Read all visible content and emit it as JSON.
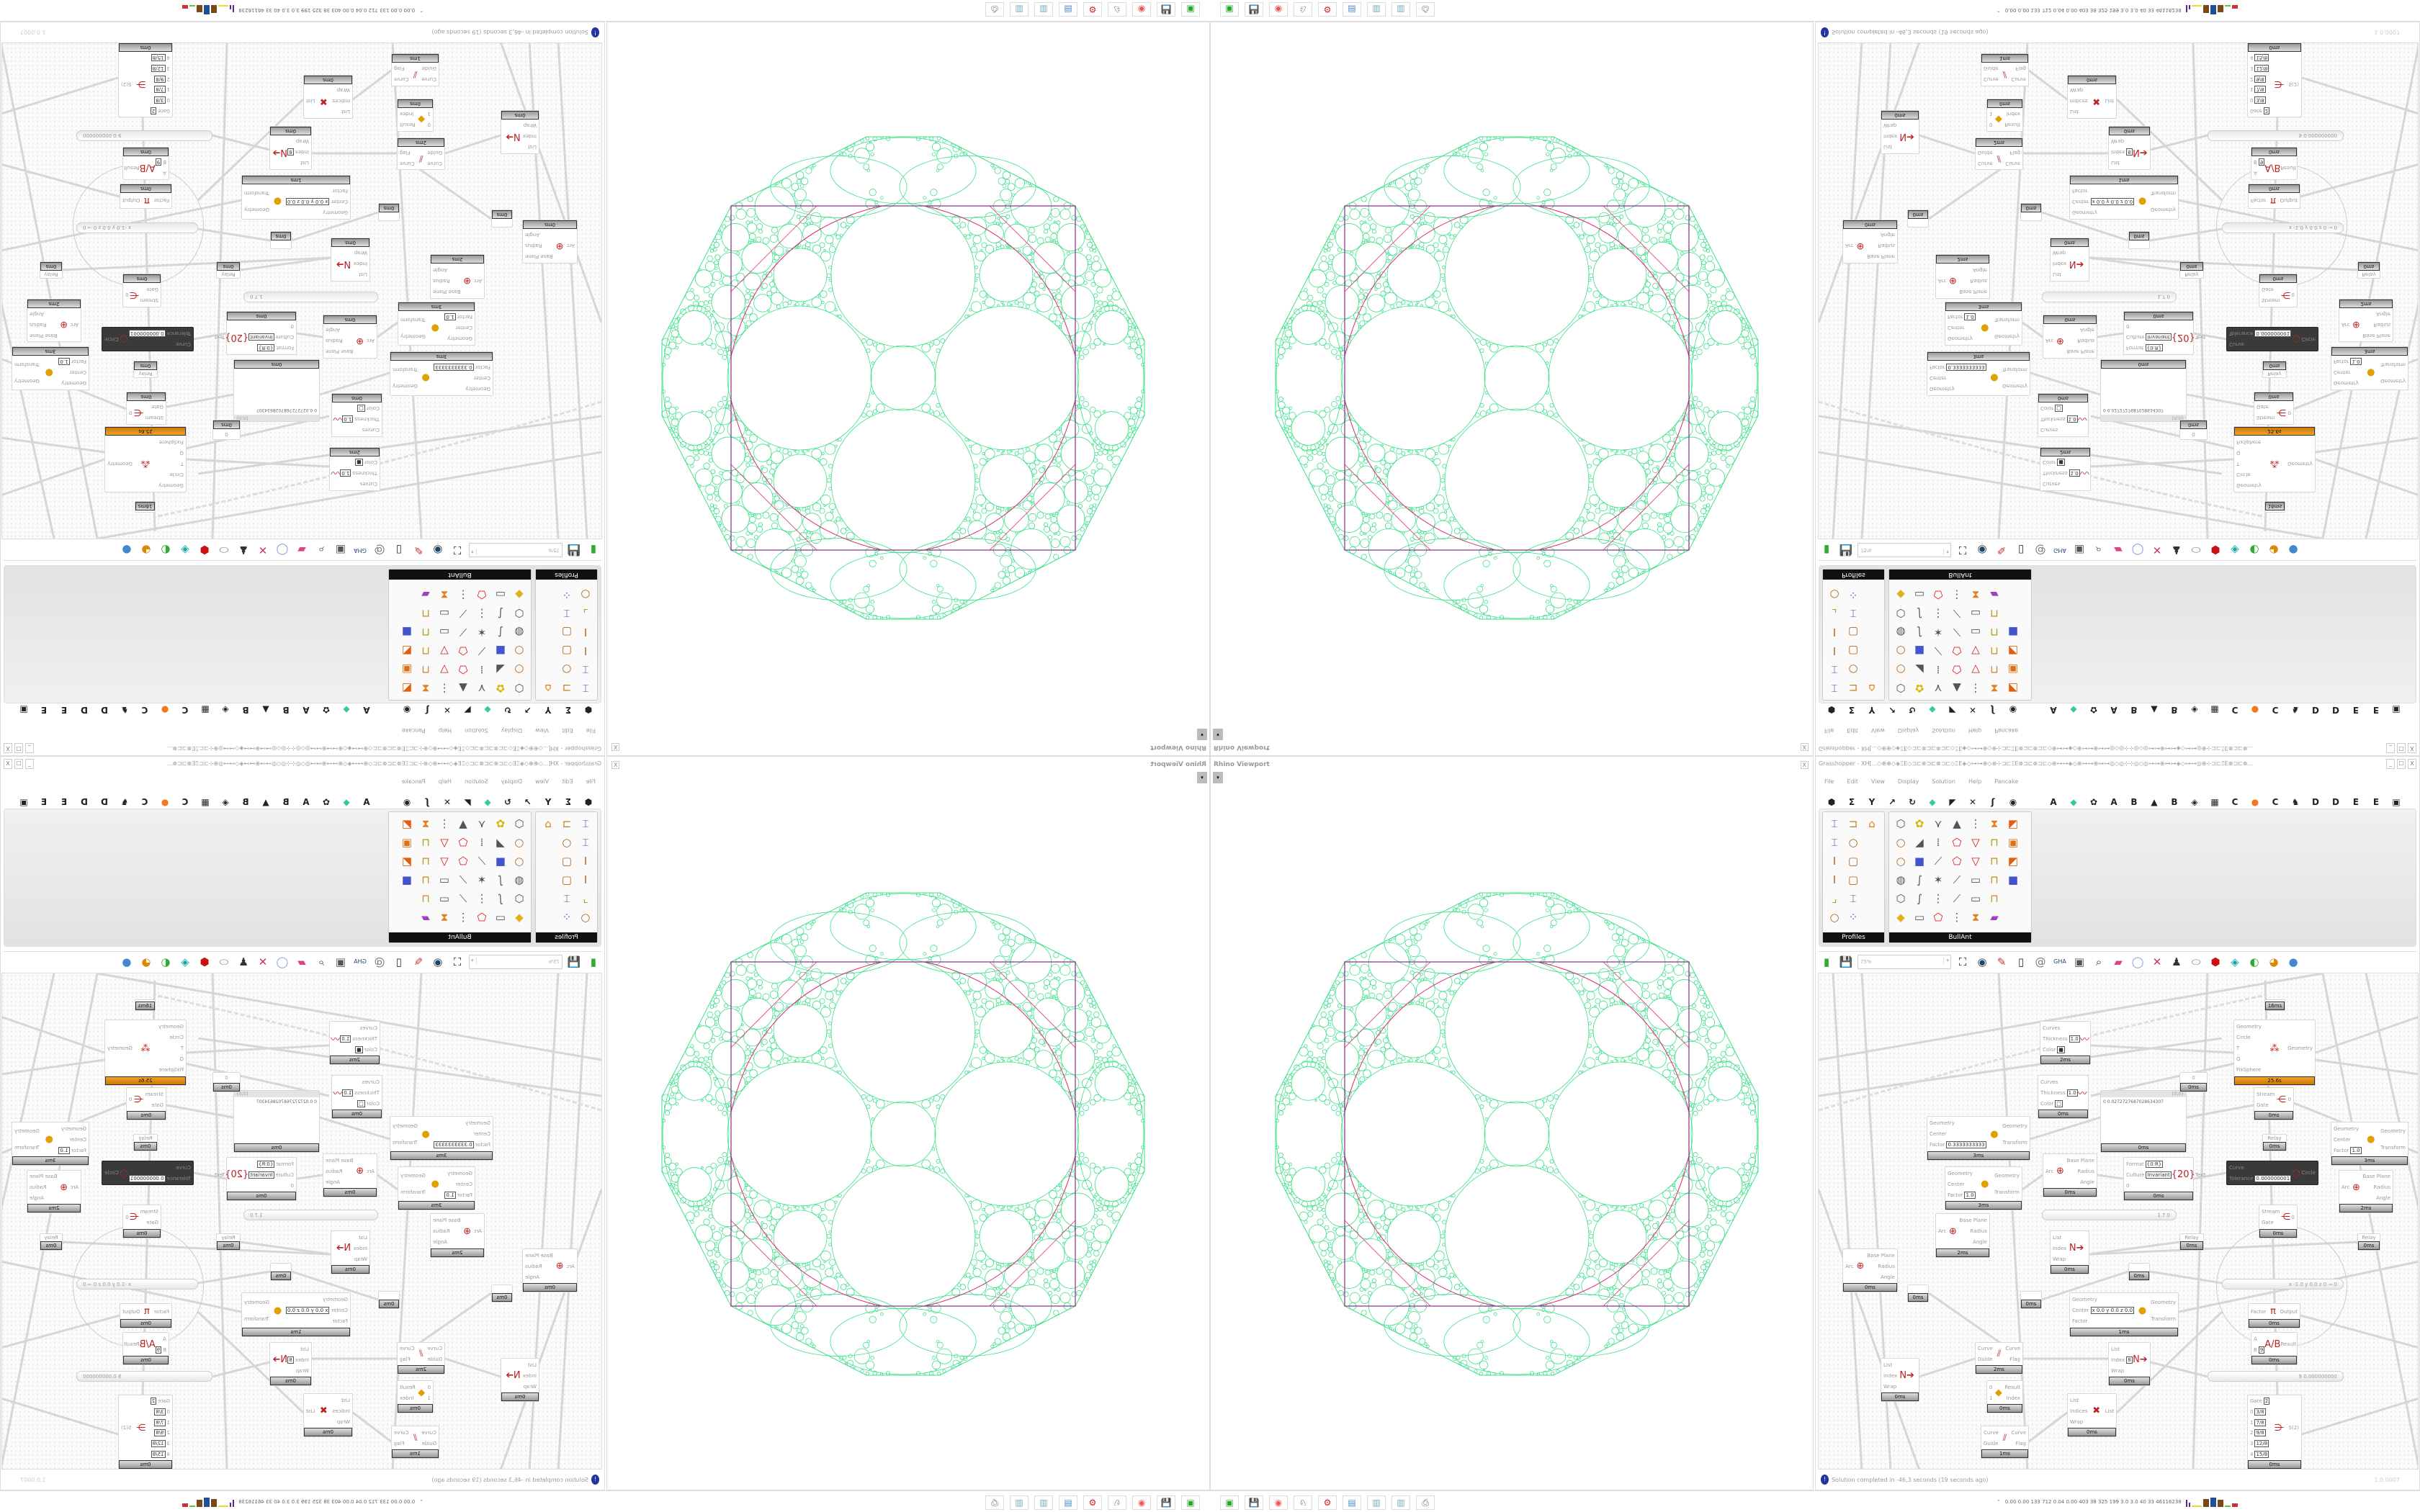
{
  "viewport": {
    "title": "Rhino Viewport",
    "close": "X",
    "dropdown": "▾",
    "colors": {
      "circles": "#3ee08a",
      "arcs": "#e0287a",
      "frame": "#8a2a8a"
    }
  },
  "grasshopper": {
    "title": "Grasshopper - XH[...◇⊕⊕◇◈ΞΕ◇⊐⊏⊗⊐⊏⊗⊐⊏◇ΞΕ◈◇⊶⊶⊕◇⊕⊹⊐⊏ΞΕ⊗⊐⊏⊗⊐⊏◇⊕⊶⊶◈◇⊕⊶⊶⊕⊶⊶◎◇◎⊹⊹◎◇◎⊶⊶⊕⊶⊶◈◇⊶⊶◎⊕⊹⊐⊏ΞΕ⊗⊐⊏⊗...",
    "window_buttons": [
      "_",
      "☐",
      "X"
    ],
    "menu": [
      "File",
      "Edit",
      "View",
      "Display",
      "Solution",
      "Help",
      "Pancake"
    ],
    "tabs": [
      "⬢",
      "Σ",
      "Y",
      "↗",
      "↻",
      "◆",
      "◤",
      "✕",
      "ʃ",
      "◉",
      "",
      "A",
      "◆",
      "✿",
      "A",
      "B",
      "▲",
      "B",
      "◈",
      "▦",
      "C",
      "●",
      "C",
      "♞",
      "D",
      "D",
      "E",
      "E",
      "▣"
    ],
    "accent": "#f07820",
    "panels": [
      {
        "label": "Profiles",
        "cols": 3,
        "icons": [
          "I-beam-profile",
          "C-channel",
          "roof",
          "I-beam-profile",
          "ring",
          "",
          "I-section",
          "rect-tube",
          "",
          "I-section",
          "rect-tube",
          "",
          "angle",
          "I-beam-profile",
          "",
          "ring",
          "points",
          ""
        ]
      },
      {
        "label": "BullAnt",
        "cols": 7,
        "icons": [
          "solid",
          "flower",
          "split",
          "cone",
          "divide",
          "warp",
          "chart",
          "ring",
          "plane",
          "grid",
          "polygon-red",
          "triangle",
          "lock",
          "box-orange",
          "ring",
          "cube",
          "polyline",
          "polygon-red",
          "triangle",
          "lock",
          "chart",
          "sphere",
          "curve",
          "star",
          "polyline",
          "frame",
          "lock",
          "cube",
          "solid",
          "curve",
          "divide",
          "polyline",
          "frame",
          "lock",
          "",
          "gem",
          "frame",
          "polygon-red",
          "divide",
          "warp",
          "rainbow",
          ""
        ]
      }
    ],
    "toolbar": {
      "zoom": "75%",
      "icons": [
        "new-file",
        "save",
        "zoom-extents",
        "eye",
        "sketch",
        "bake",
        "mail",
        "gha",
        "window",
        "search",
        "package",
        "bulb",
        "twist",
        "ink",
        "link",
        "red-gem",
        "teal",
        "green",
        "sphere",
        "blue-sphere"
      ]
    },
    "status": {
      "message": "Solution completed in -46,3 seconds (19 seconds ago)",
      "version": "1.0.0007",
      "icon": "!"
    }
  },
  "canvas": {
    "nodes": [
      {
        "inputs": [
          {
            "label": "Curves"
          },
          {
            "label": "Thickness",
            "value": "1.0"
          },
          {
            "label": "Color",
            "value": "■"
          }
        ],
        "outputs": [],
        "icon": "〰",
        "time": "2ms"
      },
      {
        "inputs": [
          {
            "label": "Curves"
          },
          {
            "label": "Thickness",
            "value": "1.0"
          },
          {
            "label": "Color",
            "value": "□"
          }
        ],
        "outputs": [],
        "icon": "〰",
        "time": "0ms"
      },
      {
        "kind": "panel",
        "header": "{0;0}",
        "text": "0  0.0272727687028634307",
        "time": "0ms"
      },
      {
        "kind": "param",
        "inputs": [
          {
            "label": "0"
          }
        ],
        "outputs": [],
        "time": "0ms"
      },
      {
        "inputs": [
          {
            "label": "Geometry"
          },
          {
            "label": "Circle"
          },
          {
            "label": "T"
          },
          {
            "label": "Q"
          },
          {
            "label": "FixSphere"
          }
        ],
        "outputs": [
          {
            "label": "Geometry"
          }
        ],
        "icon": "⁂",
        "time": "25.6s",
        "style": "orange"
      },
      {
        "inputs": [
          {
            "label": "Stream"
          },
          {
            "label": "Gate"
          }
        ],
        "outputs": [
          {
            "label": "0"
          }
        ],
        "icon": "⋲",
        "time": "0ms"
      },
      {
        "kind": "param",
        "inputs": [
          {
            "label": "Relay"
          }
        ],
        "outputs": [],
        "time": "0ms"
      },
      {
        "inputs": [
          {
            "label": "Geometry"
          },
          {
            "label": "Center"
          },
          {
            "label": "Factor",
            "value": "0.3333333333"
          }
        ],
        "outputs": [
          {
            "label": "Geometry"
          },
          {
            "label": "Transform"
          }
        ],
        "icon": "●",
        "time": "3ms"
      },
      {
        "inputs": [
          {
            "label": "Geometry"
          },
          {
            "label": "Center"
          },
          {
            "label": "Factor",
            "value": "1.0"
          }
        ],
        "outputs": [
          {
            "label": "Geometry"
          },
          {
            "label": "Transform"
          }
        ],
        "icon": "●",
        "time": "3ms"
      },
      {
        "inputs": [
          {
            "label": "Arc"
          }
        ],
        "outputs": [
          {
            "label": "Base Plane"
          },
          {
            "label": "Radius"
          },
          {
            "label": "Angle"
          }
        ],
        "icon": "⊕",
        "time": "0ms"
      },
      {
        "inputs": [
          {
            "label": "Format",
            "value": "{0:R}"
          },
          {
            "label": "Culture",
            "value": "Invariant"
          },
          {
            "label": "0"
          }
        ],
        "outputs": [
          {
            "label": "Text"
          }
        ],
        "icon": "{20}",
        "time": "0ms"
      },
      {
        "inputs": [
          {
            "label": "Curve"
          },
          {
            "label": "Tolerance",
            "value": "0.000000001"
          }
        ],
        "outputs": [
          {
            "label": "Circle"
          }
        ],
        "icon": "○",
        "time": "",
        "style": "dark"
      },
      {
        "inputs": [
          {
            "label": "Geometry"
          },
          {
            "label": "Center"
          },
          {
            "label": "Factor",
            "value": "1.0"
          }
        ],
        "outputs": [
          {
            "label": "Geometry"
          },
          {
            "label": "Transform"
          }
        ],
        "icon": "●",
        "time": "3ms"
      },
      {
        "inputs": [
          {
            "label": "Arc"
          }
        ],
        "outputs": [
          {
            "label": "Base Plane"
          },
          {
            "label": "Radius"
          },
          {
            "label": "Angle"
          }
        ],
        "icon": "⊕",
        "time": "2ms"
      },
      {
        "inputs": [
          {
            "label": "Stream"
          },
          {
            "label": "Gate"
          }
        ],
        "outputs": [
          {
            "label": "0"
          }
        ],
        "icon": "⋲",
        "time": "0ms"
      },
      {
        "kind": "param",
        "inputs": [
          {
            "label": ""
          }
        ],
        "outputs": [],
        "time": "16ms"
      },
      {
        "inputs": [
          {
            "label": "Arc"
          }
        ],
        "outputs": [
          {
            "label": "Base Plane"
          },
          {
            "label": "Radius"
          },
          {
            "label": "Angle"
          }
        ],
        "icon": "⊕",
        "time": "2ms"
      },
      {
        "inputs": [
          {
            "label": "Arc"
          }
        ],
        "outputs": [
          {
            "label": "Base Plane"
          },
          {
            "label": "Radius"
          },
          {
            "label": "Angle"
          }
        ],
        "icon": "⊕",
        "time": "0ms"
      },
      {
        "kind": "param",
        "inputs": [
          {
            "label": ""
          }
        ],
        "outputs": [],
        "time": "0ms"
      },
      {
        "inputs": [
          {
            "label": "List"
          },
          {
            "label": "Index"
          },
          {
            "label": "Wrap"
          }
        ],
        "outputs": [],
        "icon": "N➔",
        "time": "0ms"
      },
      {
        "kind": "param",
        "inputs": [
          {
            "label": "Relay"
          }
        ],
        "outputs": [],
        "time": "0ms"
      },
      {
        "kind": "param",
        "inputs": [
          {
            "label": "Relay"
          }
        ],
        "outputs": [],
        "time": "0ms"
      },
      {
        "kind": "param",
        "inputs": [
          {
            "label": ""
          }
        ],
        "outputs": [],
        "time": "0ms"
      },
      {
        "kind": "param",
        "inputs": [
          {
            "label": ""
          }
        ],
        "outputs": [],
        "time": "0ms"
      },
      {
        "inputs": [
          {
            "label": "Geometry"
          },
          {
            "label": "Center",
            "value": "x 0.0 y 0.0 z 0.0"
          },
          {
            "label": "Factor"
          }
        ],
        "outputs": [
          {
            "label": "Geometry"
          },
          {
            "label": "Transform"
          }
        ],
        "icon": "●",
        "time": "1ms"
      },
      {
        "inputs": [
          {
            "label": "Factor"
          }
        ],
        "outputs": [
          {
            "label": "Output"
          }
        ],
        "icon": "π",
        "time": "0ms"
      },
      {
        "inputs": [
          {
            "label": "A"
          },
          {
            "label": "B",
            "value": "9"
          }
        ],
        "outputs": [
          {
            "label": "Result"
          }
        ],
        "icon": "A/B",
        "time": "0ms"
      },
      {
        "inputs": [
          {
            "label": "Curve"
          },
          {
            "label": "Guide"
          }
        ],
        "outputs": [
          {
            "label": "Curve"
          },
          {
            "label": "Flag"
          }
        ],
        "icon": "⫽",
        "time": "2ms"
      },
      {
        "inputs": [
          {
            "label": "List"
          },
          {
            "label": "Index",
            "value": "8"
          },
          {
            "label": "Wrap"
          }
        ],
        "outputs": [],
        "icon": "N➔",
        "time": "0ms"
      },
      {
        "inputs": [
          {
            "label": "List"
          },
          {
            "label": "Index"
          },
          {
            "label": "Wrap"
          }
        ],
        "outputs": [],
        "icon": "N➔",
        "time": "0ms"
      },
      {
        "inputs": [
          {
            "label": "0"
          },
          {
            "label": "1"
          }
        ],
        "outputs": [
          {
            "label": "Result"
          },
          {
            "label": "Index"
          }
        ],
        "icon": "◆",
        "time": "0ms"
      },
      {
        "inputs": [
          {
            "label": "List"
          },
          {
            "label": "Indices"
          },
          {
            "label": "Wrap"
          }
        ],
        "outputs": [
          {
            "label": "List"
          }
        ],
        "icon": "✖",
        "time": "0ms"
      },
      {
        "inputs": [
          {
            "label": "Curve"
          },
          {
            "label": "Guide"
          }
        ],
        "outputs": [
          {
            "label": "Curve"
          },
          {
            "label": "Flag"
          }
        ],
        "icon": "⫽",
        "time": "1ms"
      },
      {
        "inputs": [
          {
            "label": "Gate",
            "value": "2"
          },
          {
            "label": "0",
            "value": "3/8"
          },
          {
            "label": "1",
            "value": "7/8"
          },
          {
            "label": "2",
            "value": "9/8"
          },
          {
            "label": "3",
            "value": "12/8"
          },
          {
            "label": "4",
            "value": "15/8"
          }
        ],
        "outputs": [
          {
            "label": "S(2)"
          }
        ],
        "icon": "⋺",
        "time": "0ms"
      }
    ],
    "sliders": [
      "1.7   0",
      "x -1.0  y 0.0  z 0   ⊸ 0",
      "9  0.000000000"
    ]
  },
  "taskbar": {
    "icons": [
      "monitor",
      "floppy-64",
      "firefox",
      "wolf",
      "red-gear",
      "calculator",
      "notepad",
      "notepad",
      "printer"
    ],
    "glyphs": [
      "▣",
      "💾",
      "◉",
      "♘",
      "⚙",
      "▤",
      "▥",
      "▥",
      "⎙"
    ],
    "stats": "0.00 0.00 133 712 0.04 0.00 403  38  325  199  3.0  3.0  40  33  46116238"
  }
}
